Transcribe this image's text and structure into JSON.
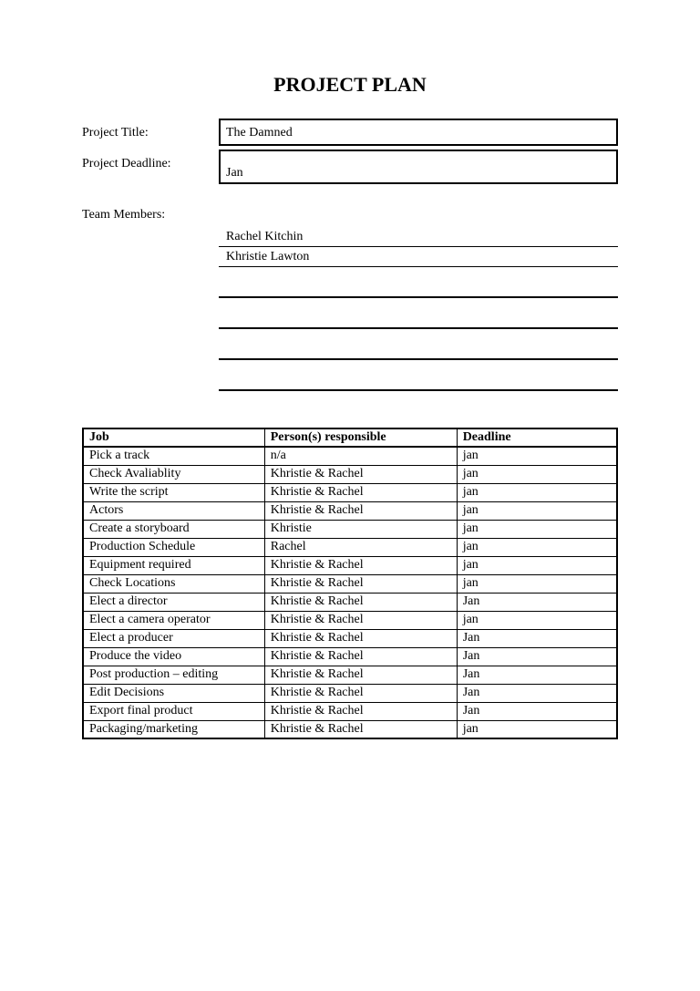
{
  "header": {
    "title": "PROJECT PLAN"
  },
  "form": {
    "project_title_label": "Project Title:",
    "project_title_value": "The Damned",
    "project_deadline_label": "Project Deadline:",
    "project_deadline_value": "Jan",
    "team_members_label": "Team Members:",
    "team_members": [
      "Rachel Kitchin",
      "Khristie Lawton"
    ]
  },
  "table": {
    "columns": [
      "Job",
      "Person(s) responsible",
      "Deadline"
    ],
    "rows": [
      [
        "Pick a track",
        "n/a",
        "jan"
      ],
      [
        "Check Avaliablity",
        "Khristie & Rachel",
        "jan"
      ],
      [
        "Write the script",
        "Khristie & Rachel",
        "jan"
      ],
      [
        "Actors",
        "Khristie & Rachel",
        "jan"
      ],
      [
        "Create a storyboard",
        "Khristie",
        "jan"
      ],
      [
        "Production Schedule",
        "Rachel",
        "jan"
      ],
      [
        "Equipment required",
        "Khristie & Rachel",
        "jan"
      ],
      [
        "Check Locations",
        "Khristie & Rachel",
        "jan"
      ],
      [
        "Elect a director",
        "Khristie & Rachel",
        "Jan"
      ],
      [
        "Elect a camera operator",
        "Khristie & Rachel",
        "jan"
      ],
      [
        "Elect a producer",
        "Khristie & Rachel",
        "Jan"
      ],
      [
        "Produce the video",
        "Khristie & Rachel",
        "Jan"
      ],
      [
        "Post production – editing",
        "Khristie & Rachel",
        "Jan"
      ],
      [
        "Edit Decisions",
        "Khristie & Rachel",
        "Jan"
      ],
      [
        "Export final product",
        "Khristie & Rachel",
        "Jan"
      ],
      [
        "Packaging/marketing",
        "Khristie & Rachel",
        "jan"
      ]
    ]
  },
  "style": {
    "background_color": "#ffffff",
    "text_color": "#000000",
    "border_color": "#000000",
    "title_fontsize": 22,
    "body_fontsize": 14,
    "font_family": "Times New Roman"
  }
}
